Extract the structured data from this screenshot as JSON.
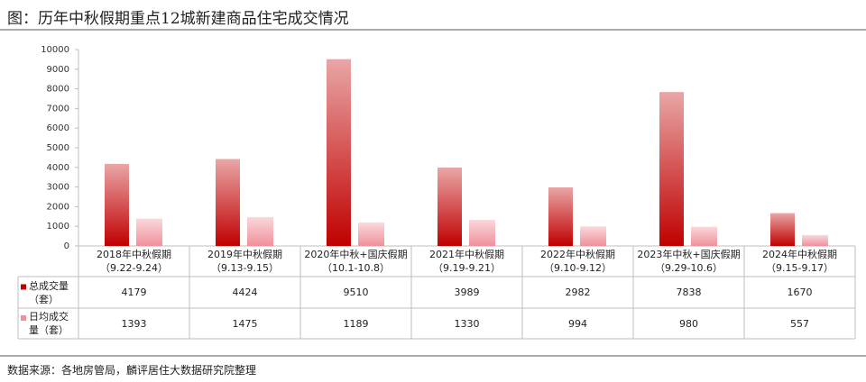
{
  "chart_data": {
    "type": "bar",
    "title": "图：历年中秋假期重点12城新建商品住宅成交情况",
    "source": "数据来源：各地房管局，麟评居住大数据研究院整理",
    "categories": [
      "2018年中秋假期\n（9.22-9.24）",
      "2019年中秋假期\n（9.13-9.15）",
      "2020年中秋+国庆假期\n（10.1-10.8）",
      "2021年中秋假期\n（9.19-9.21）",
      "2022年中秋假期\n（9.10-9.12）",
      "2023年中秋+国庆假期\n（9.29-10.6）",
      "2024年中秋假期\n（9.15-9.17）"
    ],
    "series": [
      {
        "name": "总成交量\n（套）",
        "color": "#c00000",
        "values": [
          4179,
          4424,
          9510,
          3989,
          2982,
          7838,
          1670
        ]
      },
      {
        "name": "日均成交\n量（套）",
        "color": "#f0909a",
        "values": [
          1393,
          1475,
          1189,
          1330,
          994,
          980,
          557
        ]
      }
    ],
    "ylim": [
      0,
      10000
    ],
    "yticks": [
      0,
      1000,
      2000,
      3000,
      4000,
      5000,
      6000,
      7000,
      8000,
      9000,
      10000
    ]
  }
}
